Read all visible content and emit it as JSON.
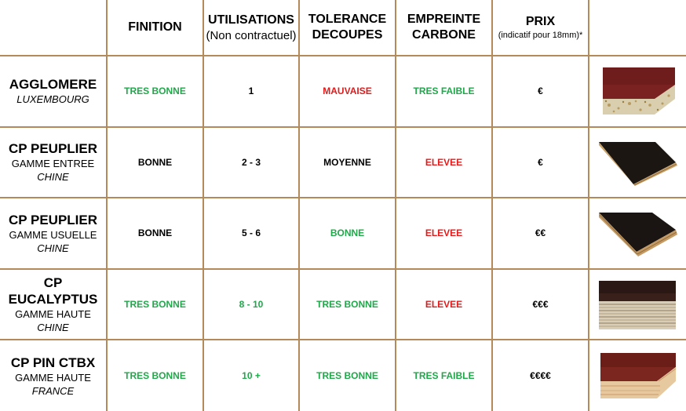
{
  "headers": {
    "finition": "FINITION",
    "utilisations": "UTILISATIONS",
    "utilisations_sub": "(Non contractuel)",
    "tolerance": "TOLERANCE DECOUPES",
    "empreinte": "EMPREINTE CARBONE",
    "prix": "PRIX",
    "prix_sub": "(indicatif pour 18mm)*"
  },
  "colors": {
    "green": "#20a84a",
    "red": "#e11b1b",
    "black": "#000000",
    "grid": "#b48a5a"
  },
  "rows": [
    {
      "name": "AGGLOMERE",
      "range": "",
      "origin": "LUXEMBOURG",
      "finition": {
        "text": "TRES BONNE",
        "color": "green"
      },
      "utilisations": {
        "text": "1",
        "color": "black"
      },
      "tolerance": {
        "text": "MAUVAISE",
        "color": "red"
      },
      "empreinte": {
        "text": "TRES FAIBLE",
        "color": "green"
      },
      "prix": "€",
      "image": "particleboard-sample-image"
    },
    {
      "name": "CP PEUPLIER",
      "range": "GAMME ENTREE",
      "origin": "CHINE",
      "finition": {
        "text": "BONNE",
        "color": "black"
      },
      "utilisations": {
        "text": "2 - 3",
        "color": "black"
      },
      "tolerance": {
        "text": "MOYENNE",
        "color": "black"
      },
      "empreinte": {
        "text": "ELEVEE",
        "color": "red"
      },
      "prix": "€",
      "image": "poplar-plywood-entry-sample-image"
    },
    {
      "name": "CP PEUPLIER",
      "range": "GAMME USUELLE",
      "origin": "CHINE",
      "finition": {
        "text": "BONNE",
        "color": "black"
      },
      "utilisations": {
        "text": "5 - 6",
        "color": "black"
      },
      "tolerance": {
        "text": "BONNE",
        "color": "green"
      },
      "empreinte": {
        "text": "ELEVEE",
        "color": "red"
      },
      "prix": "€€",
      "image": "poplar-plywood-standard-sample-image"
    },
    {
      "name": "CP EUCALYPTUS",
      "range": "GAMME HAUTE",
      "origin": "CHINE",
      "finition": {
        "text": "TRES BONNE",
        "color": "green"
      },
      "utilisations": {
        "text": "8 - 10",
        "color": "green"
      },
      "tolerance": {
        "text": "TRES BONNE",
        "color": "green"
      },
      "empreinte": {
        "text": "ELEVEE",
        "color": "red"
      },
      "prix": "€€€",
      "image": "eucalyptus-plywood-sample-image"
    },
    {
      "name": "CP PIN CTBX",
      "range": "GAMME HAUTE",
      "origin": "FRANCE",
      "finition": {
        "text": "TRES BONNE",
        "color": "green"
      },
      "utilisations": {
        "text": "10 +",
        "color": "green"
      },
      "tolerance": {
        "text": "TRES BONNE",
        "color": "green"
      },
      "empreinte": {
        "text": "TRES FAIBLE",
        "color": "green"
      },
      "prix": "€€€€",
      "image": "pine-ctbx-plywood-sample-image"
    }
  ]
}
